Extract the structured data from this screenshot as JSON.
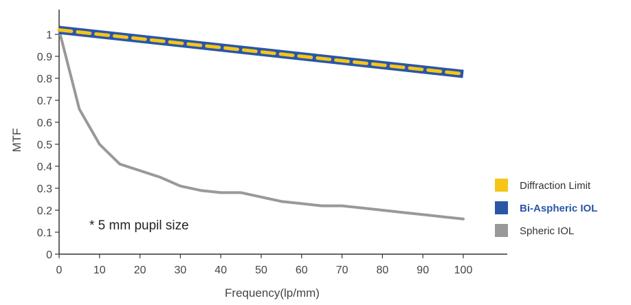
{
  "chart_data": {
    "type": "line",
    "xlabel": "Frequency(lp/mm)",
    "ylabel": "MTF",
    "xlim": [
      0,
      100
    ],
    "ylim": [
      0,
      1
    ],
    "x_ticks": [
      "0",
      "10",
      "20",
      "30",
      "40",
      "50",
      "60",
      "70",
      "80",
      "90",
      "100"
    ],
    "y_ticks": [
      "0",
      "0.1",
      "0.2",
      "0.3",
      "0.4",
      "0.5",
      "0.6",
      "0.7",
      "0.8",
      "0.9",
      "1"
    ],
    "legend_position": "right",
    "annotation": "* 5 mm pupil size",
    "series": [
      {
        "name": "Diffraction Limit",
        "color": "#F5C518",
        "style": "dashed",
        "x": [
          0,
          100
        ],
        "y": [
          1.02,
          0.82
        ]
      },
      {
        "name": "Bi-Aspheric IOL",
        "color": "#2A56A8",
        "style": "thick",
        "bold_label": true,
        "x": [
          0,
          100
        ],
        "y": [
          1.02,
          0.82
        ]
      },
      {
        "name": "Spheric IOL",
        "color": "#999999",
        "style": "solid",
        "x": [
          0,
          5,
          10,
          15,
          20,
          25,
          30,
          35,
          40,
          45,
          50,
          55,
          60,
          65,
          70,
          75,
          80,
          85,
          90,
          95,
          100
        ],
        "y": [
          1.02,
          0.66,
          0.5,
          0.41,
          0.38,
          0.35,
          0.31,
          0.29,
          0.28,
          0.28,
          0.26,
          0.24,
          0.23,
          0.22,
          0.22,
          0.21,
          0.2,
          0.19,
          0.18,
          0.17,
          0.16
        ]
      }
    ]
  }
}
